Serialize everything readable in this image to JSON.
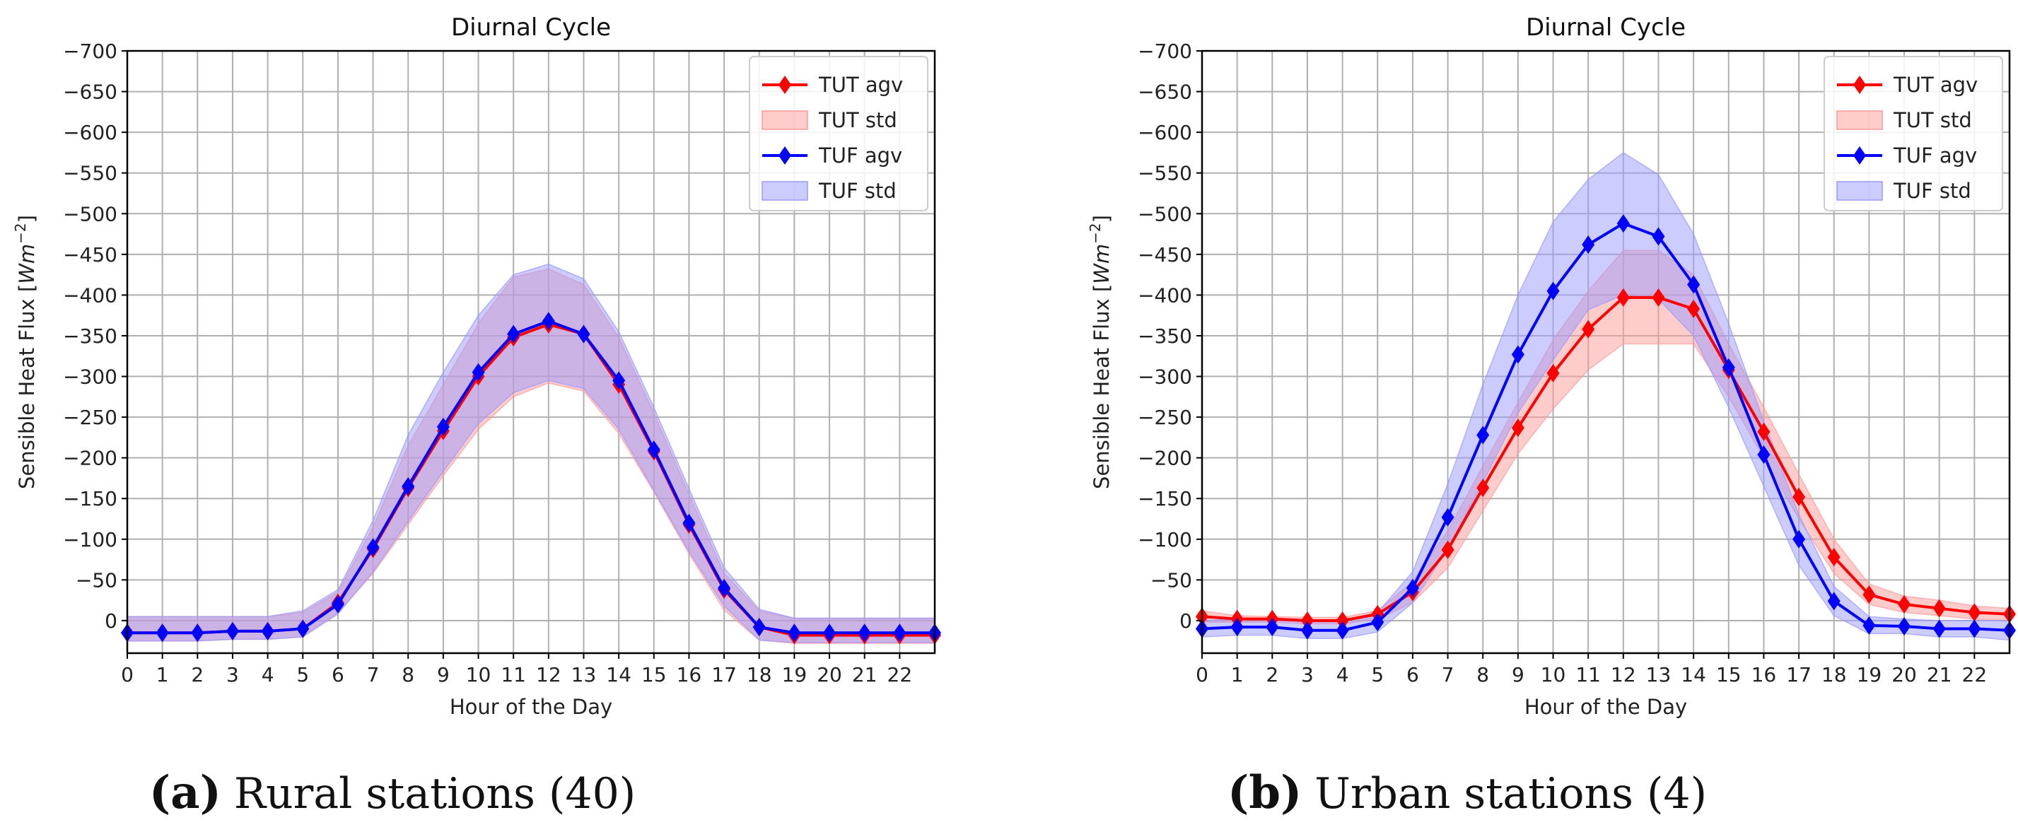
{
  "chart_data": [
    {
      "type": "line",
      "title": "Diurnal Cycle",
      "xlabel": "Hour of the Day",
      "ylabel": "Sensible Heat Flux [Wm^-2]",
      "ylabel_main": "Sensible Heat Flux [",
      "ylabel_unit": "Wm",
      "ylabel_exp": "−2",
      "ylabel_close": "]",
      "ylim": [
        40,
        -700
      ],
      "xlim": [
        0,
        23
      ],
      "x_ticks": [
        0,
        1,
        2,
        3,
        4,
        5,
        6,
        7,
        8,
        9,
        10,
        11,
        12,
        13,
        14,
        15,
        16,
        17,
        18,
        19,
        20,
        21,
        22
      ],
      "y_ticks": [
        0,
        -50,
        -100,
        -150,
        -200,
        -250,
        -300,
        -350,
        -400,
        -450,
        -500,
        -550,
        -600,
        -650,
        -700
      ],
      "y_tick_labels": [
        "0",
        "−50",
        "−100",
        "−150",
        "−200",
        "−250",
        "−300",
        "−350",
        "−400",
        "−450",
        "−500",
        "−550",
        "−600",
        "−650",
        "−700"
      ],
      "grid": true,
      "legend_position": "top-right",
      "x": [
        0,
        1,
        2,
        3,
        4,
        5,
        6,
        7,
        8,
        9,
        10,
        11,
        12,
        13,
        14,
        15,
        16,
        17,
        18,
        19,
        20,
        21,
        22,
        23
      ],
      "series": [
        {
          "name": "TUT agv",
          "std_name": "TUT std",
          "color": "#ff0000",
          "fill": "#ff9999",
          "values": [
            15,
            15,
            15,
            13,
            13,
            10,
            -22,
            -88,
            -163,
            -233,
            -300,
            -348,
            -364,
            -352,
            -290,
            -208,
            -118,
            -38,
            8,
            18,
            18,
            18,
            18,
            18
          ],
          "std_upper": [
            -5,
            -5,
            -5,
            -5,
            -5,
            -10,
            -35,
            -115,
            -215,
            -290,
            -365,
            -422,
            -432,
            -413,
            -348,
            -255,
            -155,
            -58,
            -12,
            -3,
            -3,
            -3,
            -3,
            -3
          ],
          "std_lower": [
            25,
            25,
            25,
            23,
            23,
            20,
            -10,
            -58,
            -118,
            -178,
            -235,
            -275,
            -292,
            -282,
            -230,
            -158,
            -82,
            -13,
            24,
            28,
            28,
            28,
            28,
            28
          ]
        },
        {
          "name": "TUF agv",
          "std_name": "TUF std",
          "color": "#0000ff",
          "fill": "#9999ff",
          "values": [
            15,
            15,
            15,
            13,
            13,
            10,
            -20,
            -90,
            -165,
            -238,
            -305,
            -352,
            -368,
            -352,
            -295,
            -210,
            -120,
            -40,
            8,
            15,
            15,
            15,
            15,
            15
          ],
          "std_upper": [
            -5,
            -5,
            -5,
            -5,
            -5,
            -12,
            -38,
            -123,
            -228,
            -305,
            -375,
            -425,
            -438,
            -420,
            -355,
            -262,
            -162,
            -65,
            -14,
            -3,
            -3,
            -3,
            -3,
            -3
          ],
          "std_lower": [
            25,
            25,
            25,
            23,
            23,
            20,
            -8,
            -60,
            -122,
            -183,
            -242,
            -280,
            -295,
            -285,
            -235,
            -160,
            -85,
            -18,
            24,
            27,
            27,
            27,
            27,
            27
          ]
        }
      ],
      "caption_label": "(a)",
      "caption_text": "Rural stations (40)"
    },
    {
      "type": "line",
      "title": "Diurnal Cycle",
      "xlabel": "Hour of the Day",
      "ylabel": "Sensible Heat Flux [Wm^-2]",
      "ylabel_main": "Sensible Heat Flux [",
      "ylabel_unit": "Wm",
      "ylabel_exp": "−2",
      "ylabel_close": "]",
      "ylim": [
        40,
        -700
      ],
      "xlim": [
        0,
        23
      ],
      "x_ticks": [
        0,
        1,
        2,
        3,
        4,
        5,
        6,
        7,
        8,
        9,
        10,
        11,
        12,
        13,
        14,
        15,
        16,
        17,
        18,
        19,
        20,
        21,
        22
      ],
      "y_ticks": [
        0,
        -50,
        -100,
        -150,
        -200,
        -250,
        -300,
        -350,
        -400,
        -450,
        -500,
        -550,
        -600,
        -650,
        -700
      ],
      "y_tick_labels": [
        "0",
        "−50",
        "−100",
        "−150",
        "−200",
        "−250",
        "−300",
        "−350",
        "−400",
        "−450",
        "−500",
        "−550",
        "−600",
        "−650",
        "−700"
      ],
      "grid": true,
      "legend_position": "top-right",
      "x": [
        0,
        1,
        2,
        3,
        4,
        5,
        6,
        7,
        8,
        9,
        10,
        11,
        12,
        13,
        14,
        15,
        16,
        17,
        18,
        19,
        20,
        21,
        22,
        23
      ],
      "series": [
        {
          "name": "TUT agv",
          "std_name": "TUT std",
          "color": "#ff0000",
          "fill": "#ff9999",
          "values": [
            -5,
            -2,
            -2,
            0,
            0,
            -8,
            -35,
            -87,
            -163,
            -237,
            -304,
            -358,
            -397,
            -397,
            -383,
            -308,
            -232,
            -152,
            -78,
            -32,
            -20,
            -15,
            -10,
            -8
          ],
          "std_upper": [
            -12,
            -6,
            -5,
            -4,
            -4,
            -12,
            -48,
            -110,
            -190,
            -268,
            -345,
            -405,
            -455,
            -455,
            -425,
            -340,
            -262,
            -180,
            -100,
            -45,
            -30,
            -25,
            -18,
            -15
          ],
          "std_lower": [
            2,
            2,
            2,
            4,
            4,
            -2,
            -22,
            -65,
            -135,
            -205,
            -260,
            -308,
            -340,
            -340,
            -340,
            -275,
            -200,
            -125,
            -58,
            -20,
            -10,
            -6,
            -2,
            0
          ]
        },
        {
          "name": "TUF agv",
          "std_name": "TUF std",
          "color": "#0000ff",
          "fill": "#9999ff",
          "values": [
            10,
            8,
            8,
            12,
            12,
            2,
            -40,
            -127,
            -228,
            -327,
            -405,
            -462,
            -488,
            -472,
            -413,
            -311,
            -204,
            -100,
            -24,
            6,
            7,
            10,
            10,
            12
          ],
          "std_upper": [
            0,
            -2,
            -2,
            0,
            0,
            -10,
            -60,
            -168,
            -290,
            -400,
            -490,
            -542,
            -575,
            -548,
            -475,
            -365,
            -245,
            -130,
            -42,
            -5,
            -2,
            0,
            0,
            0
          ],
          "std_lower": [
            20,
            18,
            18,
            22,
            22,
            14,
            -22,
            -88,
            -170,
            -255,
            -320,
            -382,
            -400,
            -395,
            -350,
            -262,
            -165,
            -68,
            -6,
            16,
            16,
            20,
            20,
            24
          ]
        }
      ],
      "caption_label": "(b)",
      "caption_text": "Urban stations (4)"
    }
  ]
}
